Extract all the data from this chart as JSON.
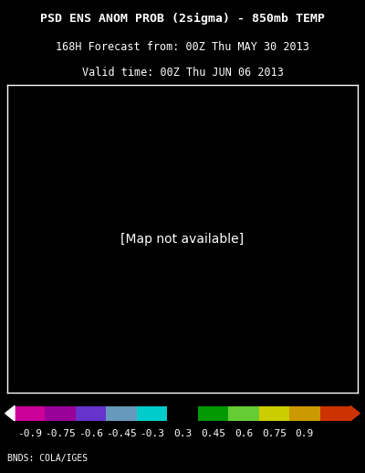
{
  "title_line1": "PSD ENS ANOM PROB (2sigma) - 850mb TEMP",
  "title_line2": "168H Forecast from: 00Z Thu MAY 30 2013",
  "title_line3": "Valid time: 00Z Thu JUN 06 2013",
  "background_color": "#000000",
  "map_bg_color": "#000000",
  "land_color": "#ffffff",
  "ocean_color": "#000000",
  "border_color": "#ffffff",
  "colorbar_colors": [
    "#cc00cc",
    "#800080",
    "#9966cc",
    "#6699cc",
    "#00cccc",
    "#000000",
    "#008000",
    "#66cc00",
    "#cccc00",
    "#cc8800",
    "#cc3300"
  ],
  "colorbar_labels": [
    "-0.9",
    "-0.75",
    "-0.6",
    "-0.45",
    "-0.3",
    "0.3",
    "0.45",
    "0.6",
    "0.75",
    "0.9"
  ],
  "colorbar_values": [
    -0.9,
    -0.75,
    -0.6,
    -0.45,
    -0.3,
    0.3,
    0.45,
    0.6,
    0.75,
    0.9
  ],
  "footer_text": "BNDS: COLA/IGES",
  "title_color": "#ffffff",
  "title_fontsize": 9.5,
  "subtitle_fontsize": 8.5,
  "colorbar_label_fontsize": 8,
  "footer_fontsize": 7,
  "fig_width": 4.0,
  "fig_height": 5.18,
  "dpi": 100,
  "colorbar_segment_colors": [
    "#cc0099",
    "#990099",
    "#6633cc",
    "#6699bb",
    "#00cccc",
    "#000000",
    "#009900",
    "#66cc33",
    "#cccc00",
    "#cc9900",
    "#cc3300"
  ],
  "highlight_cyan_region": true,
  "highlight_green_region": true
}
